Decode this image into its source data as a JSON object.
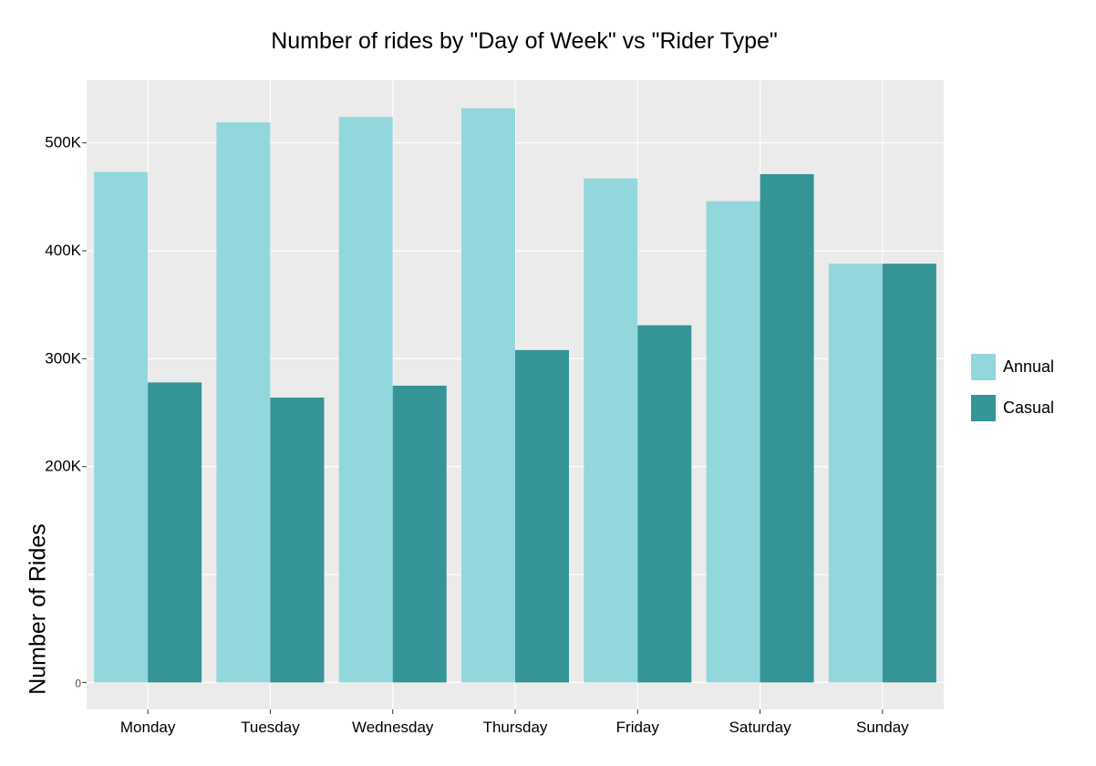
{
  "chart_data": {
    "type": "bar",
    "title": "Number of rides by \"Day of Week\"  vs \"Rider Type\"",
    "xlabel": "",
    "ylabel": "Number of Rides",
    "categories": [
      "Monday",
      "Tuesday",
      "Wednesday",
      "Thursday",
      "Friday",
      "Saturday",
      "Sunday"
    ],
    "series": [
      {
        "name": "Annual",
        "color": "#92d7dc",
        "values": [
          473000,
          519000,
          524000,
          532000,
          467000,
          446000,
          388000
        ]
      },
      {
        "name": "Casual",
        "color": "#359496",
        "values": [
          278000,
          264000,
          275000,
          308000,
          331000,
          471000,
          388000
        ]
      }
    ],
    "y_ticks": [
      {
        "value": 0,
        "label": "0"
      },
      {
        "value": 200000,
        "label": "200K"
      },
      {
        "value": 300000,
        "label": "300K"
      },
      {
        "value": 400000,
        "label": "400K"
      },
      {
        "value": 500000,
        "label": "500K"
      }
    ],
    "y_minor_gridlines": [
      100000
    ],
    "ylim": [
      -25000,
      558000
    ],
    "grid": true,
    "panel_background": "#ebebeb",
    "legend_position": "right"
  }
}
